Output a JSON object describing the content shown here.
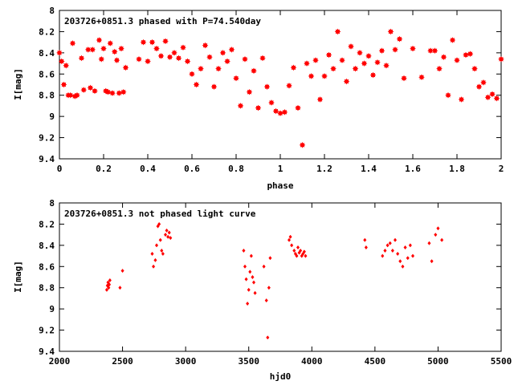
{
  "chart_data": [
    {
      "type": "scatter",
      "title": "203726+0851.3 phased with P=74.540day",
      "xlabel": "phase",
      "ylabel": "I[mag]",
      "xlim": [
        0,
        2
      ],
      "ylim": [
        9.4,
        8
      ],
      "y_inverted": true,
      "x_ticks": [
        "0",
        "0.2",
        "0.4",
        "0.6",
        "0.8",
        "1",
        "1.2",
        "1.4",
        "1.6",
        "1.8",
        "2"
      ],
      "y_ticks": [
        "8",
        "8.2",
        "8.4",
        "8.6",
        "8.8",
        "9",
        "9.2",
        "9.4"
      ],
      "marker_color": "#ff0000",
      "series": [
        {
          "x": [
            0.0,
            0.01,
            0.02,
            0.03,
            0.04,
            0.05,
            0.06,
            0.07,
            0.08,
            0.1,
            0.11,
            0.13,
            0.14,
            0.15,
            0.16,
            0.18,
            0.19,
            0.2,
            0.21,
            0.22,
            0.23,
            0.24,
            0.25,
            0.26,
            0.27,
            0.28,
            0.29,
            0.3,
            0.36,
            0.38,
            0.4,
            0.42,
            0.44,
            0.46,
            0.48,
            0.5,
            0.52,
            0.54,
            0.56,
            0.58,
            0.6,
            0.62,
            0.64,
            0.66,
            0.68,
            0.7,
            0.72,
            0.74,
            0.76,
            0.78,
            0.8,
            0.82,
            0.84,
            0.86,
            0.88,
            0.9,
            0.92,
            0.94,
            0.96,
            0.98,
            1.0,
            1.02,
            1.04,
            1.06,
            1.08,
            1.1,
            1.12,
            1.14,
            1.16,
            1.18,
            1.2,
            1.22,
            1.24,
            1.26,
            1.28,
            1.3,
            1.32,
            1.34,
            1.36,
            1.38,
            1.4,
            1.42,
            1.44,
            1.46,
            1.48,
            1.5,
            1.52,
            1.54,
            1.56,
            1.6,
            1.64,
            1.68,
            1.7,
            1.72,
            1.74,
            1.76,
            1.78,
            1.8,
            1.82,
            1.84,
            1.86,
            1.88,
            1.9,
            1.92,
            1.94,
            1.96,
            1.98,
            2.0
          ],
          "y": [
            8.4,
            8.48,
            8.7,
            8.52,
            8.8,
            8.8,
            8.31,
            8.81,
            8.8,
            8.45,
            8.75,
            8.37,
            8.73,
            8.37,
            8.76,
            8.28,
            8.46,
            8.36,
            8.76,
            8.77,
            8.31,
            8.78,
            8.39,
            8.47,
            8.78,
            8.36,
            8.77,
            8.54,
            8.46,
            8.3,
            8.48,
            8.3,
            8.36,
            8.43,
            8.29,
            8.44,
            8.4,
            8.45,
            8.35,
            8.48,
            8.6,
            8.7,
            8.55,
            8.33,
            8.44,
            8.72,
            8.55,
            8.4,
            8.48,
            8.37,
            8.64,
            8.9,
            8.46,
            8.77,
            8.57,
            8.92,
            8.45,
            8.72,
            8.87,
            8.95,
            8.97,
            8.96,
            8.71,
            8.54,
            8.92,
            9.27,
            8.5,
            8.62,
            8.47,
            8.84,
            8.62,
            8.42,
            8.55,
            8.2,
            8.47,
            8.67,
            8.34,
            8.55,
            8.4,
            8.5,
            8.43,
            8.61,
            8.49,
            8.38,
            8.52,
            8.2,
            8.37,
            8.27,
            8.64,
            8.36,
            8.63,
            8.38,
            8.38,
            8.55,
            8.44,
            8.8,
            8.28,
            8.47,
            8.84,
            8.42,
            8.41,
            8.55,
            8.72,
            8.68,
            8.82,
            8.79,
            8.83,
            8.46
          ]
        }
      ]
    },
    {
      "type": "scatter",
      "title": "203726+0851.3 not phased light curve",
      "xlabel": "hjd0",
      "ylabel": "I[mag]",
      "xlim": [
        2000,
        5500
      ],
      "ylim": [
        9.4,
        8
      ],
      "y_inverted": true,
      "x_ticks": [
        "2000",
        "2500",
        "3000",
        "3500",
        "4000",
        "4500",
        "5000",
        "5500"
      ],
      "y_ticks": [
        "8",
        "8.2",
        "8.4",
        "8.6",
        "8.8",
        "9",
        "9.2",
        "9.4"
      ],
      "marker_color": "#ff0000",
      "series": [
        {
          "x": [
            2375,
            2380,
            2385,
            2390,
            2395,
            2400,
            2480,
            2500,
            2735,
            2745,
            2760,
            2770,
            2780,
            2790,
            2800,
            2810,
            2820,
            2840,
            2850,
            2860,
            2870,
            2880,
            3460,
            3470,
            3480,
            3490,
            3500,
            3510,
            3520,
            3530,
            3540,
            3550,
            3620,
            3640,
            3650,
            3660,
            3670,
            3820,
            3830,
            3840,
            3860,
            3870,
            3880,
            3890,
            3900,
            3910,
            3920,
            3930,
            3940,
            3950,
            4420,
            4430,
            4560,
            4580,
            4600,
            4620,
            4640,
            4660,
            4680,
            4700,
            4720,
            4740,
            4760,
            4780,
            4800,
            4930,
            4950,
            4980,
            5000,
            5030
          ],
          "y": [
            8.82,
            8.78,
            8.75,
            8.8,
            8.77,
            8.73,
            8.8,
            8.64,
            8.48,
            8.6,
            8.54,
            8.4,
            8.22,
            8.2,
            8.35,
            8.45,
            8.48,
            8.3,
            8.26,
            8.32,
            8.28,
            8.33,
            8.45,
            8.6,
            8.72,
            8.95,
            8.82,
            8.65,
            8.5,
            8.7,
            8.75,
            8.85,
            8.6,
            8.92,
            9.27,
            8.8,
            8.52,
            8.35,
            8.32,
            8.4,
            8.45,
            8.48,
            8.5,
            8.42,
            8.47,
            8.45,
            8.5,
            8.48,
            8.46,
            8.5,
            8.35,
            8.42,
            8.5,
            8.45,
            8.4,
            8.38,
            8.45,
            8.35,
            8.48,
            8.55,
            8.6,
            8.42,
            8.52,
            8.4,
            8.5,
            8.38,
            8.55,
            8.3,
            8.24,
            8.35
          ]
        }
      ]
    }
  ]
}
